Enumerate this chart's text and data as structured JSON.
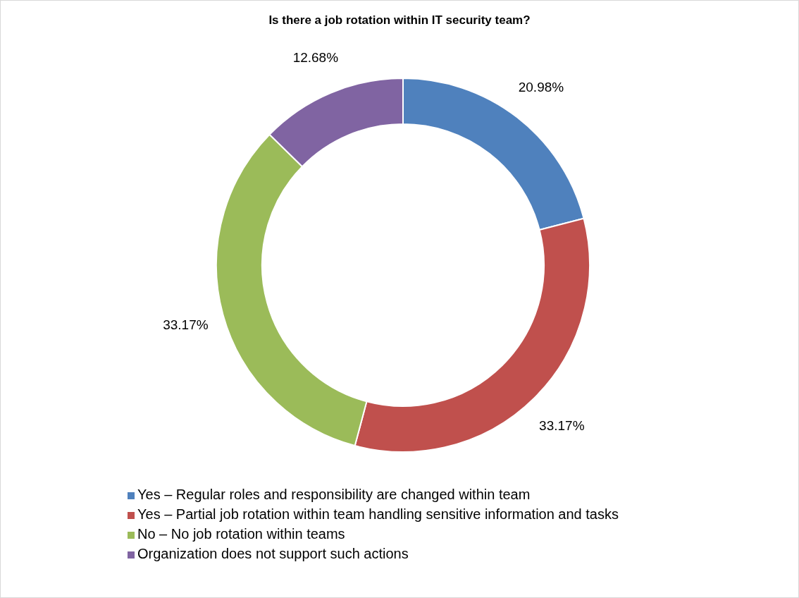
{
  "chart_data": {
    "type": "donut",
    "title": "Is there a job rotation within IT security team?",
    "categories": [
      "Yes – Regular roles and responsibility are changed within team",
      "Yes – Partial job rotation within team handling sensitive information and tasks",
      "No – No job rotation within teams",
      "Organization does not support such actions"
    ],
    "values": [
      20.98,
      33.17,
      33.17,
      12.68
    ],
    "colors": [
      "#4f81bd",
      "#c0504d",
      "#9bbb59",
      "#8064a2"
    ],
    "value_labels": [
      "20.98%",
      "33.17%",
      "33.17%",
      "12.68%"
    ],
    "legend": "bottom"
  }
}
